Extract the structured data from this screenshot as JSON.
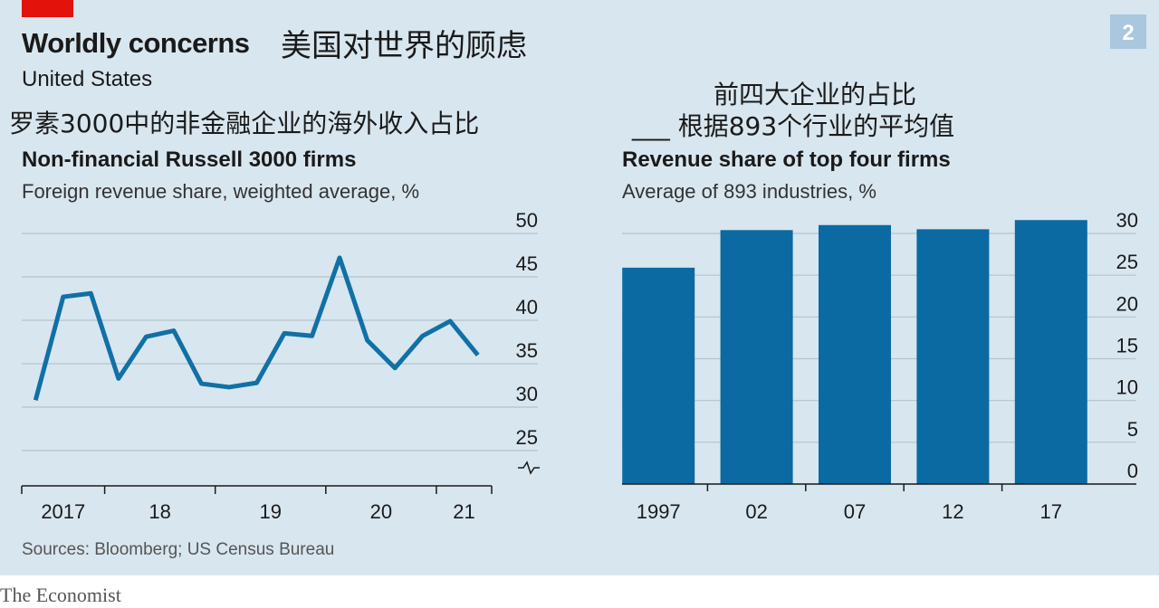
{
  "title": "Worldly concerns",
  "title_zh": "美国对世界的顾虑",
  "subtitle": "United States",
  "badge": "2",
  "source": "Sources: Bloomberg; US Census Bureau",
  "footer": "The Economist",
  "chart_data": [
    {
      "type": "line",
      "caption_zh": "罗素3000中的非金融企业的海外收入占比",
      "title": "Non-financial Russell 3000 firms",
      "subtitle": "Foreign revenue share, weighted average, %",
      "categories": [
        "2017",
        null,
        null,
        "18",
        null,
        null,
        null,
        "19",
        null,
        null,
        null,
        "20",
        null,
        null,
        null,
        "21",
        null
      ],
      "values": [
        30.8,
        42.7,
        43.1,
        33.3,
        38.1,
        38.8,
        32.7,
        32.3,
        32.8,
        38.5,
        38.2,
        47.2,
        37.7,
        34.5,
        38.2,
        39.9,
        36.0
      ],
      "color": "#1170a6",
      "ylim": [
        21,
        50
      ],
      "yticks": [
        25,
        30,
        35,
        40,
        45,
        50
      ],
      "grid": true
    },
    {
      "type": "bar",
      "caption_zh": [
        "前四大企业的占比",
        "___ 根据893个行业的平均值"
      ],
      "title": "Revenue share of top four firms",
      "subtitle": "Average of 893 industries, %",
      "categories": [
        "1997",
        "02",
        "07",
        "12",
        "17"
      ],
      "values": [
        25.9,
        30.4,
        31.0,
        30.5,
        31.6
      ],
      "color": "#0b6aa2",
      "ylim": [
        0,
        30
      ],
      "yticks": [
        0,
        5,
        10,
        15,
        20,
        25,
        30
      ],
      "grid": true
    }
  ]
}
